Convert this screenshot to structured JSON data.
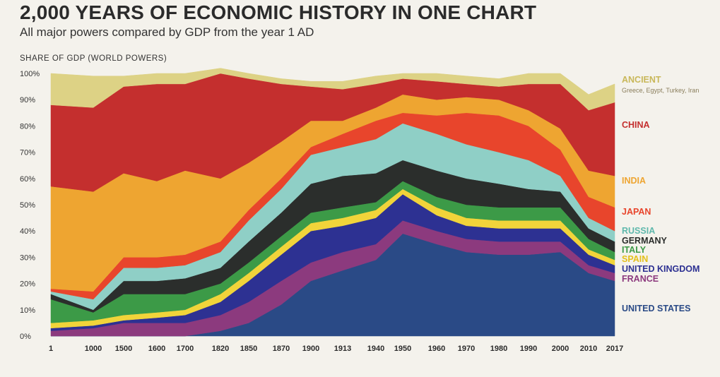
{
  "header": {
    "title": "2,000 YEARS OF ECONOMIC HISTORY IN ONE CHART",
    "subtitle": "All major powers compared by GDP from the year 1 AD",
    "y_axis_label": "SHARE OF GDP (WORLD POWERS)"
  },
  "chart_data": {
    "type": "area",
    "stacked": true,
    "xlabel": "",
    "ylabel": "SHARE OF GDP (WORLD POWERS)",
    "ylim": [
      0,
      100
    ],
    "y_ticks": [
      "0%",
      "10%",
      "20%",
      "30%",
      "40%",
      "50%",
      "60%",
      "70%",
      "80%",
      "90%",
      "100%"
    ],
    "x": [
      "1",
      "1000",
      "1500",
      "1600",
      "1700",
      "1820",
      "1850",
      "1870",
      "1900",
      "1913",
      "1940",
      "1950",
      "1960",
      "1970",
      "1980",
      "1990",
      "2000",
      "2010",
      "2017"
    ],
    "series": [
      {
        "name": "UNITED STATES",
        "color": "#2a4a86",
        "values": [
          0,
          0,
          0,
          0,
          0,
          2,
          5,
          12,
          21,
          25,
          29,
          39,
          35,
          32,
          31,
          31,
          32,
          24,
          21
        ]
      },
      {
        "name": "FRANCE",
        "color": "#8c3a7e",
        "values": [
          2,
          3,
          5,
          5,
          5,
          6,
          8,
          9,
          7,
          7,
          6,
          5,
          5,
          5,
          5,
          5,
          4,
          3,
          3
        ]
      },
      {
        "name": "UNITED KINGDOM",
        "color": "#2d3192",
        "values": [
          1,
          1,
          1,
          2,
          3,
          5,
          8,
          10,
          12,
          10,
          10,
          10,
          6,
          5,
          5,
          5,
          5,
          4,
          3
        ]
      },
      {
        "name": "SPAIN",
        "color": "#f1d43a",
        "values": [
          2,
          2,
          2,
          2,
          2,
          3,
          3,
          3,
          3,
          3,
          3,
          2,
          3,
          3,
          3,
          3,
          3,
          2,
          2
        ]
      },
      {
        "name": "ITALY",
        "color": "#3c9a47",
        "values": [
          9,
          3,
          8,
          7,
          6,
          4,
          4,
          4,
          4,
          4,
          3,
          3,
          4,
          5,
          5,
          5,
          5,
          4,
          3
        ]
      },
      {
        "name": "GERMANY",
        "color": "#2b2e2c",
        "values": [
          2,
          1,
          5,
          5,
          6,
          6,
          8,
          9,
          11,
          12,
          11,
          8,
          10,
          10,
          9,
          7,
          6,
          4,
          4
        ]
      },
      {
        "name": "RUSSIA",
        "color": "#8fcfc6",
        "values": [
          1,
          4,
          5,
          5,
          5,
          6,
          8,
          9,
          11,
          11,
          13,
          14,
          14,
          13,
          12,
          11,
          6,
          4,
          4
        ]
      },
      {
        "name": "JAPAN",
        "color": "#e8452c",
        "values": [
          1,
          3,
          4,
          4,
          4,
          4,
          4,
          4,
          3,
          5,
          7,
          4,
          7,
          12,
          14,
          13,
          10,
          8,
          9
        ]
      },
      {
        "name": "INDIA",
        "color": "#eea531",
        "values": [
          39,
          38,
          32,
          29,
          32,
          24,
          18,
          14,
          10,
          5,
          5,
          7,
          6,
          6,
          6,
          6,
          8,
          10,
          12
        ]
      },
      {
        "name": "CHINA",
        "color": "#c42f2e",
        "values": [
          31,
          32,
          33,
          37,
          33,
          40,
          32,
          22,
          13,
          12,
          9,
          6,
          7,
          5,
          5,
          10,
          17,
          23,
          28
        ]
      },
      {
        "name": "ANCIENT",
        "color": "#ddd285",
        "values": [
          12,
          12,
          4,
          4,
          4,
          2,
          2,
          2,
          2,
          3,
          3,
          2,
          3,
          3,
          3,
          4,
          4,
          6,
          7
        ]
      }
    ],
    "legend": {
      "placement": "right",
      "ancient_note": "Greece, Egypt, Turkey, Iran"
    },
    "grid": false
  }
}
